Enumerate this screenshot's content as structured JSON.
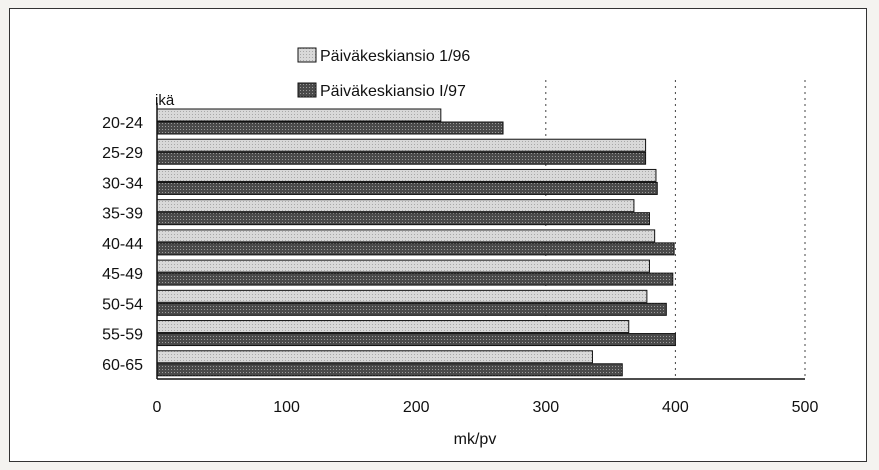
{
  "chart_data": {
    "type": "bar",
    "orientation": "horizontal",
    "title": "",
    "ylabel": "ikä",
    "xlabel": "mk/pv",
    "xlim": [
      0,
      500
    ],
    "xticks": [
      0,
      100,
      200,
      300,
      400,
      500
    ],
    "grid": "vertical dotted at 300, 400, 500",
    "legend_position": "top",
    "categories": [
      "20-24",
      "25-29",
      "30-34",
      "35-39",
      "40-44",
      "45-49",
      "50-54",
      "55-59",
      "60-65"
    ],
    "series": [
      {
        "name": "Päiväkeskiansio 1/96",
        "color": "#d2d2d2",
        "values": [
          219,
          377,
          385,
          368,
          384,
          380,
          378,
          364,
          336
        ]
      },
      {
        "name": "Päiväkeskiansio I/97",
        "color": "#555555",
        "values": [
          267,
          377,
          386,
          380,
          399,
          398,
          393,
          400,
          359
        ]
      }
    ]
  }
}
